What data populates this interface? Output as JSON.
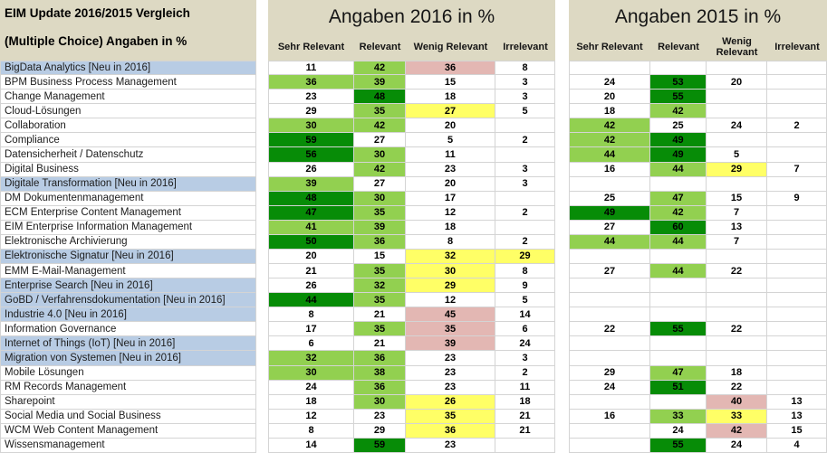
{
  "header": {
    "left_title": "EIM Update 2016/2015 Vergleich",
    "left_subtitle": "(Multiple Choice) Angaben in %",
    "section_2016_title": "Angaben 2016 in %",
    "section_2015_title": "Angaben 2015 in %",
    "columns": [
      "Sehr Relevant",
      "Relevant",
      "Wenig Relevant",
      "Irrelevant"
    ]
  },
  "colors": {
    "header_bg": "#ddd9c3",
    "new_row_bg": "#b8cce4",
    "light_green": "#92d050",
    "dark_green": "#078c07",
    "yellow": "#ffff66",
    "rose": "#e3b7b3",
    "grid_border": "#d4d4d4"
  },
  "fill_legend": {
    "w": "white",
    "lg": "light_green",
    "dg": "dark_green",
    "yl": "yellow",
    "pk": "rose"
  },
  "chart_data": {
    "type": "table",
    "title": "EIM Update 2016/2015 Vergleich (Multiple Choice) Angaben in %",
    "columns": [
      "Sehr Relevant",
      "Relevant",
      "Wenig Relevant",
      "Irrelevant"
    ],
    "categories": [
      "BigData Analytics [Neu in 2016]",
      "BPM Business Process Management",
      "Change Management",
      "Cloud-Lösungen",
      "Collaboration",
      "Compliance",
      "Datensicherheit / Datenschutz",
      "Digital Business",
      "Digitale Transformation [Neu in 2016]",
      "DM Dokumentenmanagement",
      "ECM Enterprise Content Management",
      "EIM Enterprise Information Management",
      "Elektronische Archivierung",
      "Elektronische Signatur [Neu in 2016]",
      "EMM E-Mail-Management",
      "Enterprise Search [Neu in 2016]",
      "GoBD / Verfahrensdokumentation [Neu in 2016]",
      "Industrie 4.0 [Neu in 2016]",
      "Information Governance",
      "Internet of Things (IoT) [Neu in 2016]",
      "Migration von Systemen [Neu in 2016]",
      "Mobile Lösungen",
      "RM Records Management",
      "Sharepoint",
      "Social Media und Social Business",
      "WCM Web Content Management",
      "Wissensmanagement"
    ],
    "new_in_2016": [
      true,
      false,
      false,
      false,
      false,
      false,
      false,
      false,
      true,
      false,
      false,
      false,
      false,
      true,
      false,
      true,
      true,
      true,
      false,
      true,
      true,
      false,
      false,
      false,
      false,
      false,
      false
    ],
    "series_2016": {
      "name": "Angaben 2016 in %",
      "values": [
        [
          11,
          42,
          36,
          8
        ],
        [
          36,
          39,
          15,
          3
        ],
        [
          23,
          48,
          18,
          3
        ],
        [
          29,
          35,
          27,
          5
        ],
        [
          30,
          42,
          20,
          null
        ],
        [
          59,
          27,
          5,
          2
        ],
        [
          56,
          30,
          11,
          null
        ],
        [
          26,
          42,
          23,
          3
        ],
        [
          39,
          27,
          20,
          3
        ],
        [
          48,
          30,
          17,
          null
        ],
        [
          47,
          35,
          12,
          2
        ],
        [
          41,
          39,
          18,
          null
        ],
        [
          50,
          36,
          8,
          2
        ],
        [
          20,
          15,
          32,
          29
        ],
        [
          21,
          35,
          30,
          8
        ],
        [
          26,
          32,
          29,
          9
        ],
        [
          44,
          35,
          12,
          5
        ],
        [
          8,
          21,
          45,
          14
        ],
        [
          17,
          35,
          35,
          6
        ],
        [
          6,
          21,
          39,
          24
        ],
        [
          32,
          36,
          23,
          3
        ],
        [
          30,
          38,
          23,
          2
        ],
        [
          24,
          36,
          23,
          11
        ],
        [
          18,
          30,
          26,
          18
        ],
        [
          12,
          23,
          35,
          21
        ],
        [
          8,
          29,
          36,
          21
        ],
        [
          14,
          59,
          23,
          null
        ]
      ],
      "fills": [
        [
          "w",
          "lg",
          "pk",
          "w"
        ],
        [
          "lg",
          "lg",
          "w",
          "w"
        ],
        [
          "w",
          "dg",
          "w",
          "w"
        ],
        [
          "w",
          "lg",
          "yl",
          "w"
        ],
        [
          "lg",
          "lg",
          "w",
          "w"
        ],
        [
          "dg",
          "w",
          "w",
          "w"
        ],
        [
          "dg",
          "lg",
          "w",
          "w"
        ],
        [
          "w",
          "lg",
          "w",
          "w"
        ],
        [
          "lg",
          "w",
          "w",
          "w"
        ],
        [
          "dg",
          "lg",
          "w",
          "w"
        ],
        [
          "dg",
          "lg",
          "w",
          "w"
        ],
        [
          "lg",
          "lg",
          "w",
          "w"
        ],
        [
          "dg",
          "lg",
          "w",
          "w"
        ],
        [
          "w",
          "w",
          "yl",
          "yl"
        ],
        [
          "w",
          "lg",
          "yl",
          "w"
        ],
        [
          "w",
          "lg",
          "yl",
          "w"
        ],
        [
          "dg",
          "lg",
          "w",
          "w"
        ],
        [
          "w",
          "w",
          "pk",
          "w"
        ],
        [
          "w",
          "lg",
          "pk",
          "w"
        ],
        [
          "w",
          "w",
          "pk",
          "w"
        ],
        [
          "lg",
          "lg",
          "w",
          "w"
        ],
        [
          "lg",
          "lg",
          "w",
          "w"
        ],
        [
          "w",
          "lg",
          "w",
          "w"
        ],
        [
          "w",
          "lg",
          "yl",
          "w"
        ],
        [
          "w",
          "w",
          "yl",
          "w"
        ],
        [
          "w",
          "w",
          "yl",
          "w"
        ],
        [
          "w",
          "dg",
          "w",
          "w"
        ]
      ]
    },
    "series_2015": {
      "name": "Angaben 2015 in %",
      "values": [
        [
          null,
          null,
          null,
          null
        ],
        [
          24,
          53,
          20,
          null
        ],
        [
          20,
          55,
          null,
          null
        ],
        [
          18,
          42,
          null,
          null
        ],
        [
          42,
          25,
          24,
          2
        ],
        [
          42,
          49,
          null,
          null
        ],
        [
          44,
          49,
          5,
          null
        ],
        [
          16,
          44,
          29,
          7
        ],
        [
          null,
          null,
          null,
          null
        ],
        [
          25,
          47,
          15,
          9
        ],
        [
          49,
          42,
          7,
          null
        ],
        [
          27,
          60,
          13,
          null
        ],
        [
          44,
          44,
          7,
          null
        ],
        [
          null,
          null,
          null,
          null
        ],
        [
          27,
          44,
          22,
          null
        ],
        [
          null,
          null,
          null,
          null
        ],
        [
          null,
          null,
          null,
          null
        ],
        [
          null,
          null,
          null,
          null
        ],
        [
          22,
          55,
          22,
          null
        ],
        [
          null,
          null,
          null,
          null
        ],
        [
          null,
          null,
          null,
          null
        ],
        [
          29,
          47,
          18,
          null
        ],
        [
          24,
          51,
          22,
          null
        ],
        [
          null,
          null,
          40,
          13
        ],
        [
          16,
          33,
          33,
          13
        ],
        [
          null,
          24,
          42,
          15
        ],
        [
          null,
          55,
          24,
          4
        ]
      ],
      "fills": [
        [
          "w",
          "w",
          "w",
          "w"
        ],
        [
          "w",
          "dg",
          "w",
          "w"
        ],
        [
          "w",
          "dg",
          "w",
          "w"
        ],
        [
          "w",
          "lg",
          "w",
          "w"
        ],
        [
          "lg",
          "w",
          "w",
          "w"
        ],
        [
          "lg",
          "dg",
          "w",
          "w"
        ],
        [
          "lg",
          "dg",
          "w",
          "w"
        ],
        [
          "w",
          "lg",
          "yl",
          "w"
        ],
        [
          "w",
          "w",
          "w",
          "w"
        ],
        [
          "w",
          "lg",
          "w",
          "w"
        ],
        [
          "dg",
          "lg",
          "w",
          "w"
        ],
        [
          "w",
          "dg",
          "w",
          "w"
        ],
        [
          "lg",
          "lg",
          "w",
          "w"
        ],
        [
          "w",
          "w",
          "w",
          "w"
        ],
        [
          "w",
          "lg",
          "w",
          "w"
        ],
        [
          "w",
          "w",
          "w",
          "w"
        ],
        [
          "w",
          "w",
          "w",
          "w"
        ],
        [
          "w",
          "w",
          "w",
          "w"
        ],
        [
          "w",
          "dg",
          "w",
          "w"
        ],
        [
          "w",
          "w",
          "w",
          "w"
        ],
        [
          "w",
          "w",
          "w",
          "w"
        ],
        [
          "w",
          "lg",
          "w",
          "w"
        ],
        [
          "w",
          "dg",
          "w",
          "w"
        ],
        [
          "w",
          "w",
          "pk",
          "w"
        ],
        [
          "w",
          "lg",
          "yl",
          "w"
        ],
        [
          "w",
          "w",
          "pk",
          "w"
        ],
        [
          "w",
          "dg",
          "w",
          "w"
        ]
      ]
    }
  }
}
